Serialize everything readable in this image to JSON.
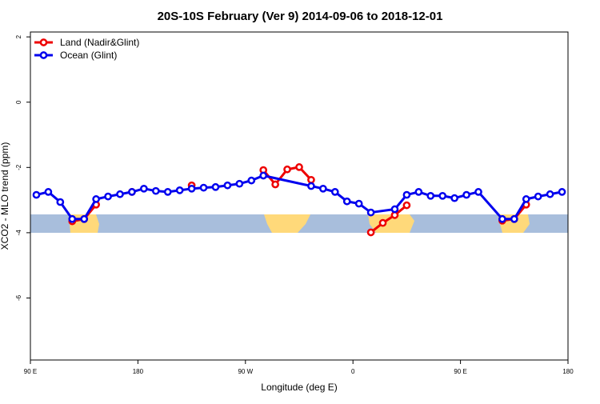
{
  "chart_data": {
    "type": "line",
    "title": "20S-10S February (Ver 9)   2014-09-06 to 2018-12-01",
    "x_label": "Longitude (deg E)",
    "y_label": "XCO2 - MLO trend (ppm)",
    "xlim": [
      90,
      540
    ],
    "ylim": [
      -7.9,
      2.15
    ],
    "xticks": [
      {
        "value": 90,
        "label": "90 E"
      },
      180,
      {
        "value": 270,
        "label": "90 W"
      },
      {
        "value": 360,
        "label": "0"
      },
      {
        "value": 450,
        "label": "90 E"
      },
      {
        "value": 540,
        "label": "180"
      }
    ],
    "yticks": [
      -6,
      -4,
      -2,
      0,
      2
    ],
    "legend": "top-left",
    "series": [
      {
        "name": "Land (Nadir&Glint)",
        "color": "#ee0000",
        "x": [
          125,
          135,
          145,
          null,
          175,
          null,
          225,
          null,
          285,
          295,
          305,
          315,
          325,
          null,
          375,
          385,
          395,
          405,
          null,
          485,
          495,
          505
        ],
        "values": [
          -3.65,
          -3.58,
          -3.14,
          null,
          -2.75,
          null,
          -2.55,
          null,
          -2.08,
          -2.52,
          -2.06,
          -1.99,
          -2.38,
          null,
          -3.99,
          -3.7,
          -3.46,
          -3.16,
          null,
          -3.63,
          -3.58,
          -3.14
        ]
      },
      {
        "name": "Ocean (Glint)",
        "color": "#0000ee",
        "x": [
          95,
          105,
          115,
          125,
          135,
          145,
          155,
          165,
          175,
          185,
          195,
          205,
          215,
          225,
          235,
          245,
          255,
          265,
          275,
          285,
          325,
          335,
          345,
          355,
          365,
          375,
          395,
          405,
          415,
          425,
          435,
          445,
          455,
          465,
          485,
          495,
          505,
          515,
          525,
          535
        ],
        "values": [
          -2.84,
          -2.75,
          -3.06,
          -3.58,
          -3.58,
          -2.97,
          -2.89,
          -2.82,
          -2.75,
          -2.65,
          -2.72,
          -2.75,
          -2.7,
          -2.65,
          -2.62,
          -2.6,
          -2.55,
          -2.5,
          -2.4,
          -2.25,
          -2.57,
          -2.65,
          -2.75,
          -3.04,
          -3.11,
          -3.38,
          -3.28,
          -2.84,
          -2.75,
          -2.87,
          -2.87,
          -2.94,
          -2.84,
          -2.75,
          -3.58,
          -3.58,
          -2.97,
          -2.89,
          -2.82,
          -2.75
        ]
      }
    ]
  }
}
